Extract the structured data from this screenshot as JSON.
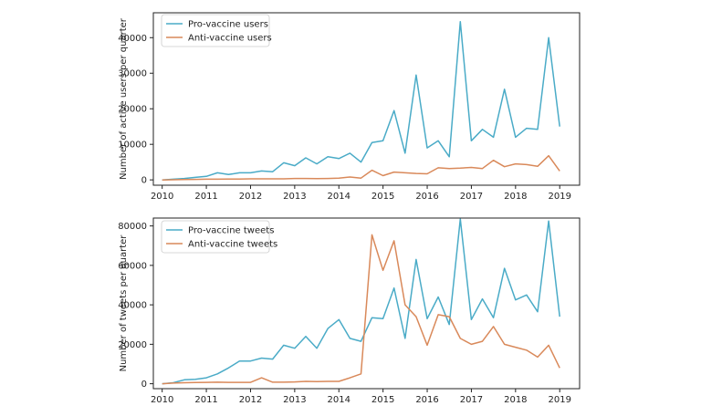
{
  "colors": {
    "pro": "#4aabc7",
    "anti": "#d9895a",
    "axis": "#222222",
    "background": "#ffffff"
  },
  "chart_data": [
    {
      "type": "line",
      "title": "",
      "xlabel": "",
      "ylabel": "Number of active users per quarter",
      "xlim": [
        2009.8,
        2019.45
      ],
      "ylim": [
        -1500,
        47000
      ],
      "xticks": [
        2010,
        2011,
        2012,
        2013,
        2014,
        2015,
        2016,
        2017,
        2018,
        2019
      ],
      "xtick_labels": [
        "2010",
        "2011",
        "2012",
        "2013",
        "2014",
        "2015",
        "2016",
        "2017",
        "2018",
        "2019"
      ],
      "yticks": [
        0,
        10000,
        20000,
        30000,
        40000
      ],
      "ytick_labels": [
        "0",
        "10000",
        "20000",
        "30000",
        "40000"
      ],
      "legend_position": "top-left",
      "x": [
        2010.0,
        2010.25,
        2010.5,
        2010.75,
        2011.0,
        2011.25,
        2011.5,
        2011.75,
        2012.0,
        2012.25,
        2012.5,
        2012.75,
        2013.0,
        2013.25,
        2013.5,
        2013.75,
        2014.0,
        2014.25,
        2014.5,
        2014.75,
        2015.0,
        2015.25,
        2015.5,
        2015.75,
        2016.0,
        2016.25,
        2016.5,
        2016.75,
        2017.0,
        2017.25,
        2017.5,
        2017.75,
        2018.0,
        2018.25,
        2018.5,
        2018.75,
        2019.0
      ],
      "series": [
        {
          "name": "Pro-vaccine users",
          "color_key": "pro",
          "values": [
            0,
            200,
            400,
            700,
            1000,
            2000,
            1500,
            2000,
            2000,
            2500,
            2300,
            4800,
            4000,
            6200,
            4500,
            6500,
            6000,
            7500,
            5000,
            10500,
            11000,
            19500,
            7500,
            29500,
            9000,
            11000,
            6500,
            44500,
            11000,
            14200,
            12000,
            25500,
            12000,
            14500,
            14200,
            40000,
            15000
          ]
        },
        {
          "name": "Anti-vaccine users",
          "color_key": "anti",
          "values": [
            0,
            50,
            100,
            150,
            200,
            200,
            250,
            250,
            300,
            300,
            300,
            300,
            400,
            400,
            350,
            400,
            500,
            800,
            500,
            2700,
            1200,
            2200,
            2000,
            1800,
            1700,
            3400,
            3200,
            3300,
            3500,
            3200,
            5500,
            3700,
            4500,
            4300,
            3800,
            6800,
            2500
          ]
        }
      ]
    },
    {
      "type": "line",
      "title": "",
      "xlabel": "",
      "ylabel": "Number of tweets per quarter",
      "xlim": [
        2009.8,
        2019.45
      ],
      "ylim": [
        -2500,
        84000
      ],
      "xticks": [
        2010,
        2011,
        2012,
        2013,
        2014,
        2015,
        2016,
        2017,
        2018,
        2019
      ],
      "xtick_labels": [
        "2010",
        "2011",
        "2012",
        "2013",
        "2014",
        "2015",
        "2016",
        "2017",
        "2018",
        "2019"
      ],
      "yticks": [
        0,
        20000,
        40000,
        60000,
        80000
      ],
      "ytick_labels": [
        "0",
        "20000",
        "40000",
        "60000",
        "80000"
      ],
      "legend_position": "top-left",
      "x": [
        2010.0,
        2010.25,
        2010.5,
        2010.75,
        2011.0,
        2011.25,
        2011.5,
        2011.75,
        2012.0,
        2012.25,
        2012.5,
        2012.75,
        2013.0,
        2013.25,
        2013.5,
        2013.75,
        2014.0,
        2014.25,
        2014.5,
        2014.75,
        2015.0,
        2015.25,
        2015.5,
        2015.75,
        2016.0,
        2016.25,
        2016.5,
        2016.75,
        2017.0,
        2017.25,
        2017.5,
        2017.75,
        2018.0,
        2018.25,
        2018.5,
        2018.75,
        2019.0
      ],
      "series": [
        {
          "name": "Pro-vaccine tweets",
          "color_key": "pro",
          "values": [
            0,
            500,
            2000,
            2200,
            3000,
            5000,
            8000,
            11500,
            11500,
            13000,
            12500,
            19500,
            18000,
            24000,
            18000,
            28000,
            32500,
            23000,
            21500,
            33500,
            33000,
            48500,
            23000,
            63000,
            33000,
            44000,
            30000,
            83500,
            32500,
            43000,
            33500,
            58500,
            42500,
            45000,
            36500,
            82500,
            34000
          ]
        },
        {
          "name": "Anti-vaccine tweets",
          "color_key": "anti",
          "values": [
            0,
            300,
            500,
            600,
            700,
            800,
            700,
            700,
            700,
            3000,
            800,
            800,
            900,
            1200,
            1100,
            1200,
            1200,
            3000,
            5000,
            75500,
            57500,
            72500,
            40000,
            34000,
            19500,
            35000,
            34000,
            23000,
            20000,
            21500,
            29000,
            20000,
            18500,
            17000,
            13500,
            19500,
            8000
          ]
        }
      ]
    }
  ]
}
